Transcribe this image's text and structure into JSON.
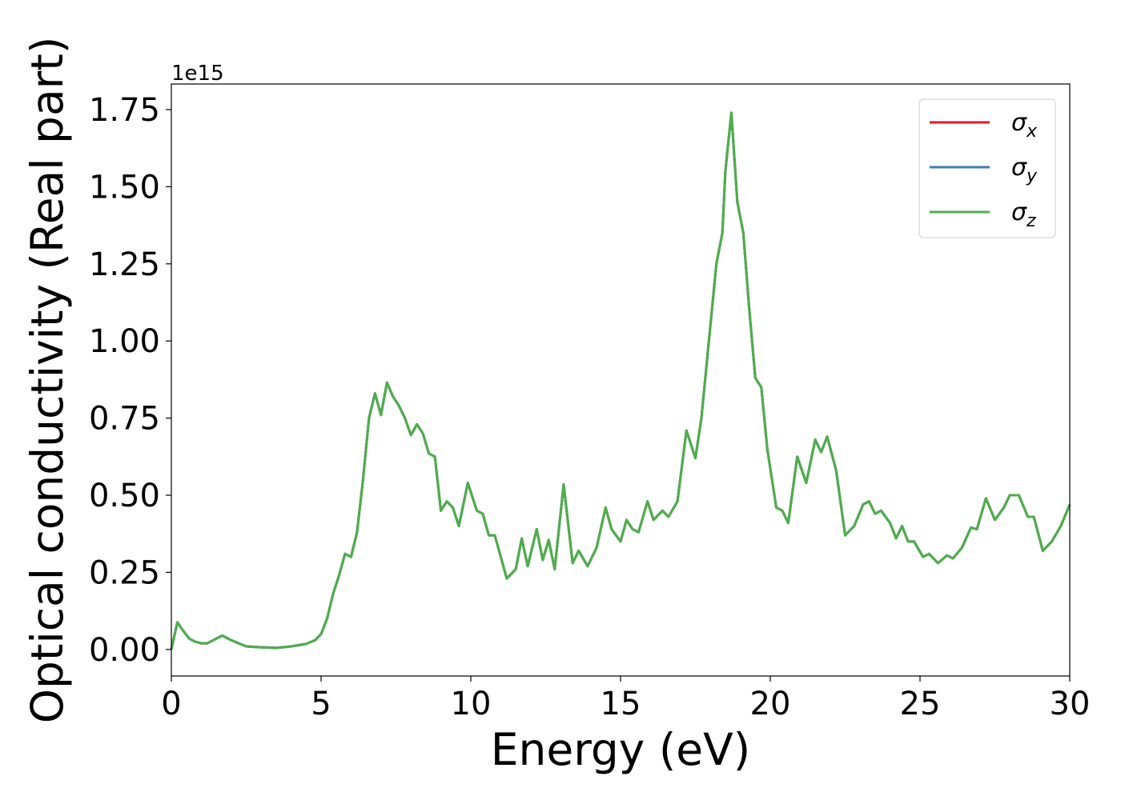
{
  "chart_data": {
    "type": "line",
    "xlabel": "Energy (eV)",
    "ylabel": "Optical conductivity (Real part)",
    "y_offset_label": "1e15",
    "xlim": [
      0,
      30
    ],
    "xticks": [
      0,
      5,
      10,
      15,
      20,
      25,
      30
    ],
    "ylim": [
      -0.086,
      1.833
    ],
    "yticks": [
      {
        "value": 0,
        "label": "0.00"
      },
      {
        "value": 0.25,
        "label": "0.25"
      },
      {
        "value": 0.5,
        "label": "0.50"
      },
      {
        "value": 0.75,
        "label": "0.75"
      },
      {
        "value": 1,
        "label": "1.00"
      },
      {
        "value": 1.25,
        "label": "1.25"
      },
      {
        "value": 1.5,
        "label": "1.50"
      },
      {
        "value": 1.75,
        "label": "1.75"
      }
    ],
    "grid": false,
    "legend": "upper right",
    "x": [
      0,
      0.2,
      0.4,
      0.6,
      0.8,
      1.0,
      1.2,
      1.5,
      1.7,
      2.0,
      2.5,
      3.0,
      3.5,
      4.0,
      4.5,
      4.8,
      5.0,
      5.2,
      5.4,
      5.6,
      5.8,
      6.0,
      6.2,
      6.4,
      6.6,
      6.8,
      7.0,
      7.2,
      7.4,
      7.6,
      7.8,
      8.0,
      8.2,
      8.4,
      8.6,
      8.8,
      9.0,
      9.2,
      9.4,
      9.6,
      9.9,
      10.2,
      10.4,
      10.6,
      10.8,
      11.0,
      11.2,
      11.5,
      11.7,
      11.9,
      12.2,
      12.4,
      12.6,
      12.8,
      13.1,
      13.4,
      13.6,
      13.9,
      14.2,
      14.5,
      14.7,
      15.0,
      15.2,
      15.4,
      15.6,
      15.9,
      16.1,
      16.4,
      16.6,
      16.9,
      17.2,
      17.5,
      17.7,
      18.0,
      18.2,
      18.4,
      18.5,
      18.7,
      18.9,
      19.1,
      19.3,
      19.5,
      19.7,
      19.9,
      20.2,
      20.4,
      20.6,
      20.9,
      21.2,
      21.5,
      21.7,
      21.9,
      22.2,
      22.5,
      22.8,
      23.1,
      23.3,
      23.5,
      23.7,
      24.0,
      24.2,
      24.4,
      24.6,
      24.8,
      25.1,
      25.3,
      25.6,
      25.9,
      26.1,
      26.4,
      26.7,
      26.9,
      27.2,
      27.5,
      27.8,
      28.0,
      28.3,
      28.6,
      28.8,
      29.1,
      29.4,
      29.7,
      30.0
    ],
    "series": [
      {
        "name": "σx",
        "color": "#e41a1c",
        "values": [
          0,
          0.088,
          0.06,
          0.035,
          0.025,
          0.02,
          0.02,
          0.035,
          0.045,
          0.03,
          0.01,
          0.007,
          0.005,
          0.01,
          0.018,
          0.03,
          0.05,
          0.1,
          0.18,
          0.24,
          0.31,
          0.3,
          0.38,
          0.55,
          0.75,
          0.83,
          0.76,
          0.865,
          0.82,
          0.79,
          0.75,
          0.695,
          0.73,
          0.7,
          0.635,
          0.625,
          0.45,
          0.48,
          0.46,
          0.4,
          0.54,
          0.45,
          0.44,
          0.37,
          0.37,
          0.3,
          0.23,
          0.26,
          0.36,
          0.27,
          0.39,
          0.29,
          0.355,
          0.26,
          0.535,
          0.28,
          0.32,
          0.27,
          0.33,
          0.46,
          0.39,
          0.35,
          0.42,
          0.39,
          0.38,
          0.48,
          0.42,
          0.45,
          0.43,
          0.48,
          0.71,
          0.62,
          0.75,
          1.05,
          1.25,
          1.35,
          1.55,
          1.74,
          1.45,
          1.35,
          1.1,
          0.88,
          0.85,
          0.65,
          0.46,
          0.45,
          0.41,
          0.625,
          0.54,
          0.68,
          0.64,
          0.69,
          0.58,
          0.37,
          0.4,
          0.47,
          0.48,
          0.44,
          0.45,
          0.41,
          0.36,
          0.4,
          0.35,
          0.35,
          0.3,
          0.31,
          0.28,
          0.305,
          0.295,
          0.33,
          0.395,
          0.39,
          0.49,
          0.42,
          0.46,
          0.5,
          0.5,
          0.43,
          0.43,
          0.32,
          0.35,
          0.4,
          0.47
        ]
      },
      {
        "name": "σy",
        "color": "#377eb8",
        "values": [
          0,
          0.088,
          0.06,
          0.035,
          0.025,
          0.02,
          0.02,
          0.035,
          0.045,
          0.03,
          0.01,
          0.007,
          0.005,
          0.01,
          0.018,
          0.03,
          0.05,
          0.1,
          0.18,
          0.24,
          0.31,
          0.3,
          0.38,
          0.55,
          0.75,
          0.83,
          0.76,
          0.865,
          0.82,
          0.79,
          0.75,
          0.695,
          0.73,
          0.7,
          0.635,
          0.625,
          0.45,
          0.48,
          0.46,
          0.4,
          0.54,
          0.45,
          0.44,
          0.37,
          0.37,
          0.3,
          0.23,
          0.26,
          0.36,
          0.27,
          0.39,
          0.29,
          0.355,
          0.26,
          0.535,
          0.28,
          0.32,
          0.27,
          0.33,
          0.46,
          0.39,
          0.35,
          0.42,
          0.39,
          0.38,
          0.48,
          0.42,
          0.45,
          0.43,
          0.48,
          0.71,
          0.62,
          0.75,
          1.05,
          1.25,
          1.35,
          1.55,
          1.74,
          1.45,
          1.35,
          1.1,
          0.88,
          0.85,
          0.65,
          0.46,
          0.45,
          0.41,
          0.625,
          0.54,
          0.68,
          0.64,
          0.69,
          0.58,
          0.37,
          0.4,
          0.47,
          0.48,
          0.44,
          0.45,
          0.41,
          0.36,
          0.4,
          0.35,
          0.35,
          0.3,
          0.31,
          0.28,
          0.305,
          0.295,
          0.33,
          0.395,
          0.39,
          0.49,
          0.42,
          0.46,
          0.5,
          0.5,
          0.43,
          0.43,
          0.32,
          0.35,
          0.4,
          0.47
        ]
      },
      {
        "name": "σz",
        "color": "#4daf4a",
        "values": [
          0,
          0.088,
          0.06,
          0.035,
          0.025,
          0.02,
          0.02,
          0.035,
          0.045,
          0.03,
          0.01,
          0.007,
          0.005,
          0.01,
          0.018,
          0.03,
          0.05,
          0.1,
          0.18,
          0.24,
          0.31,
          0.3,
          0.38,
          0.55,
          0.75,
          0.83,
          0.76,
          0.865,
          0.82,
          0.79,
          0.75,
          0.695,
          0.73,
          0.7,
          0.635,
          0.625,
          0.45,
          0.48,
          0.46,
          0.4,
          0.54,
          0.45,
          0.44,
          0.37,
          0.37,
          0.3,
          0.23,
          0.26,
          0.36,
          0.27,
          0.39,
          0.29,
          0.355,
          0.26,
          0.535,
          0.28,
          0.32,
          0.27,
          0.33,
          0.46,
          0.39,
          0.35,
          0.42,
          0.39,
          0.38,
          0.48,
          0.42,
          0.45,
          0.43,
          0.48,
          0.71,
          0.62,
          0.75,
          1.05,
          1.25,
          1.35,
          1.55,
          1.74,
          1.45,
          1.35,
          1.1,
          0.88,
          0.85,
          0.65,
          0.46,
          0.45,
          0.41,
          0.625,
          0.54,
          0.68,
          0.64,
          0.69,
          0.58,
          0.37,
          0.4,
          0.47,
          0.48,
          0.44,
          0.45,
          0.41,
          0.36,
          0.4,
          0.35,
          0.35,
          0.3,
          0.31,
          0.28,
          0.305,
          0.295,
          0.33,
          0.395,
          0.39,
          0.49,
          0.42,
          0.46,
          0.5,
          0.5,
          0.43,
          0.43,
          0.32,
          0.35,
          0.4,
          0.47
        ]
      }
    ]
  }
}
